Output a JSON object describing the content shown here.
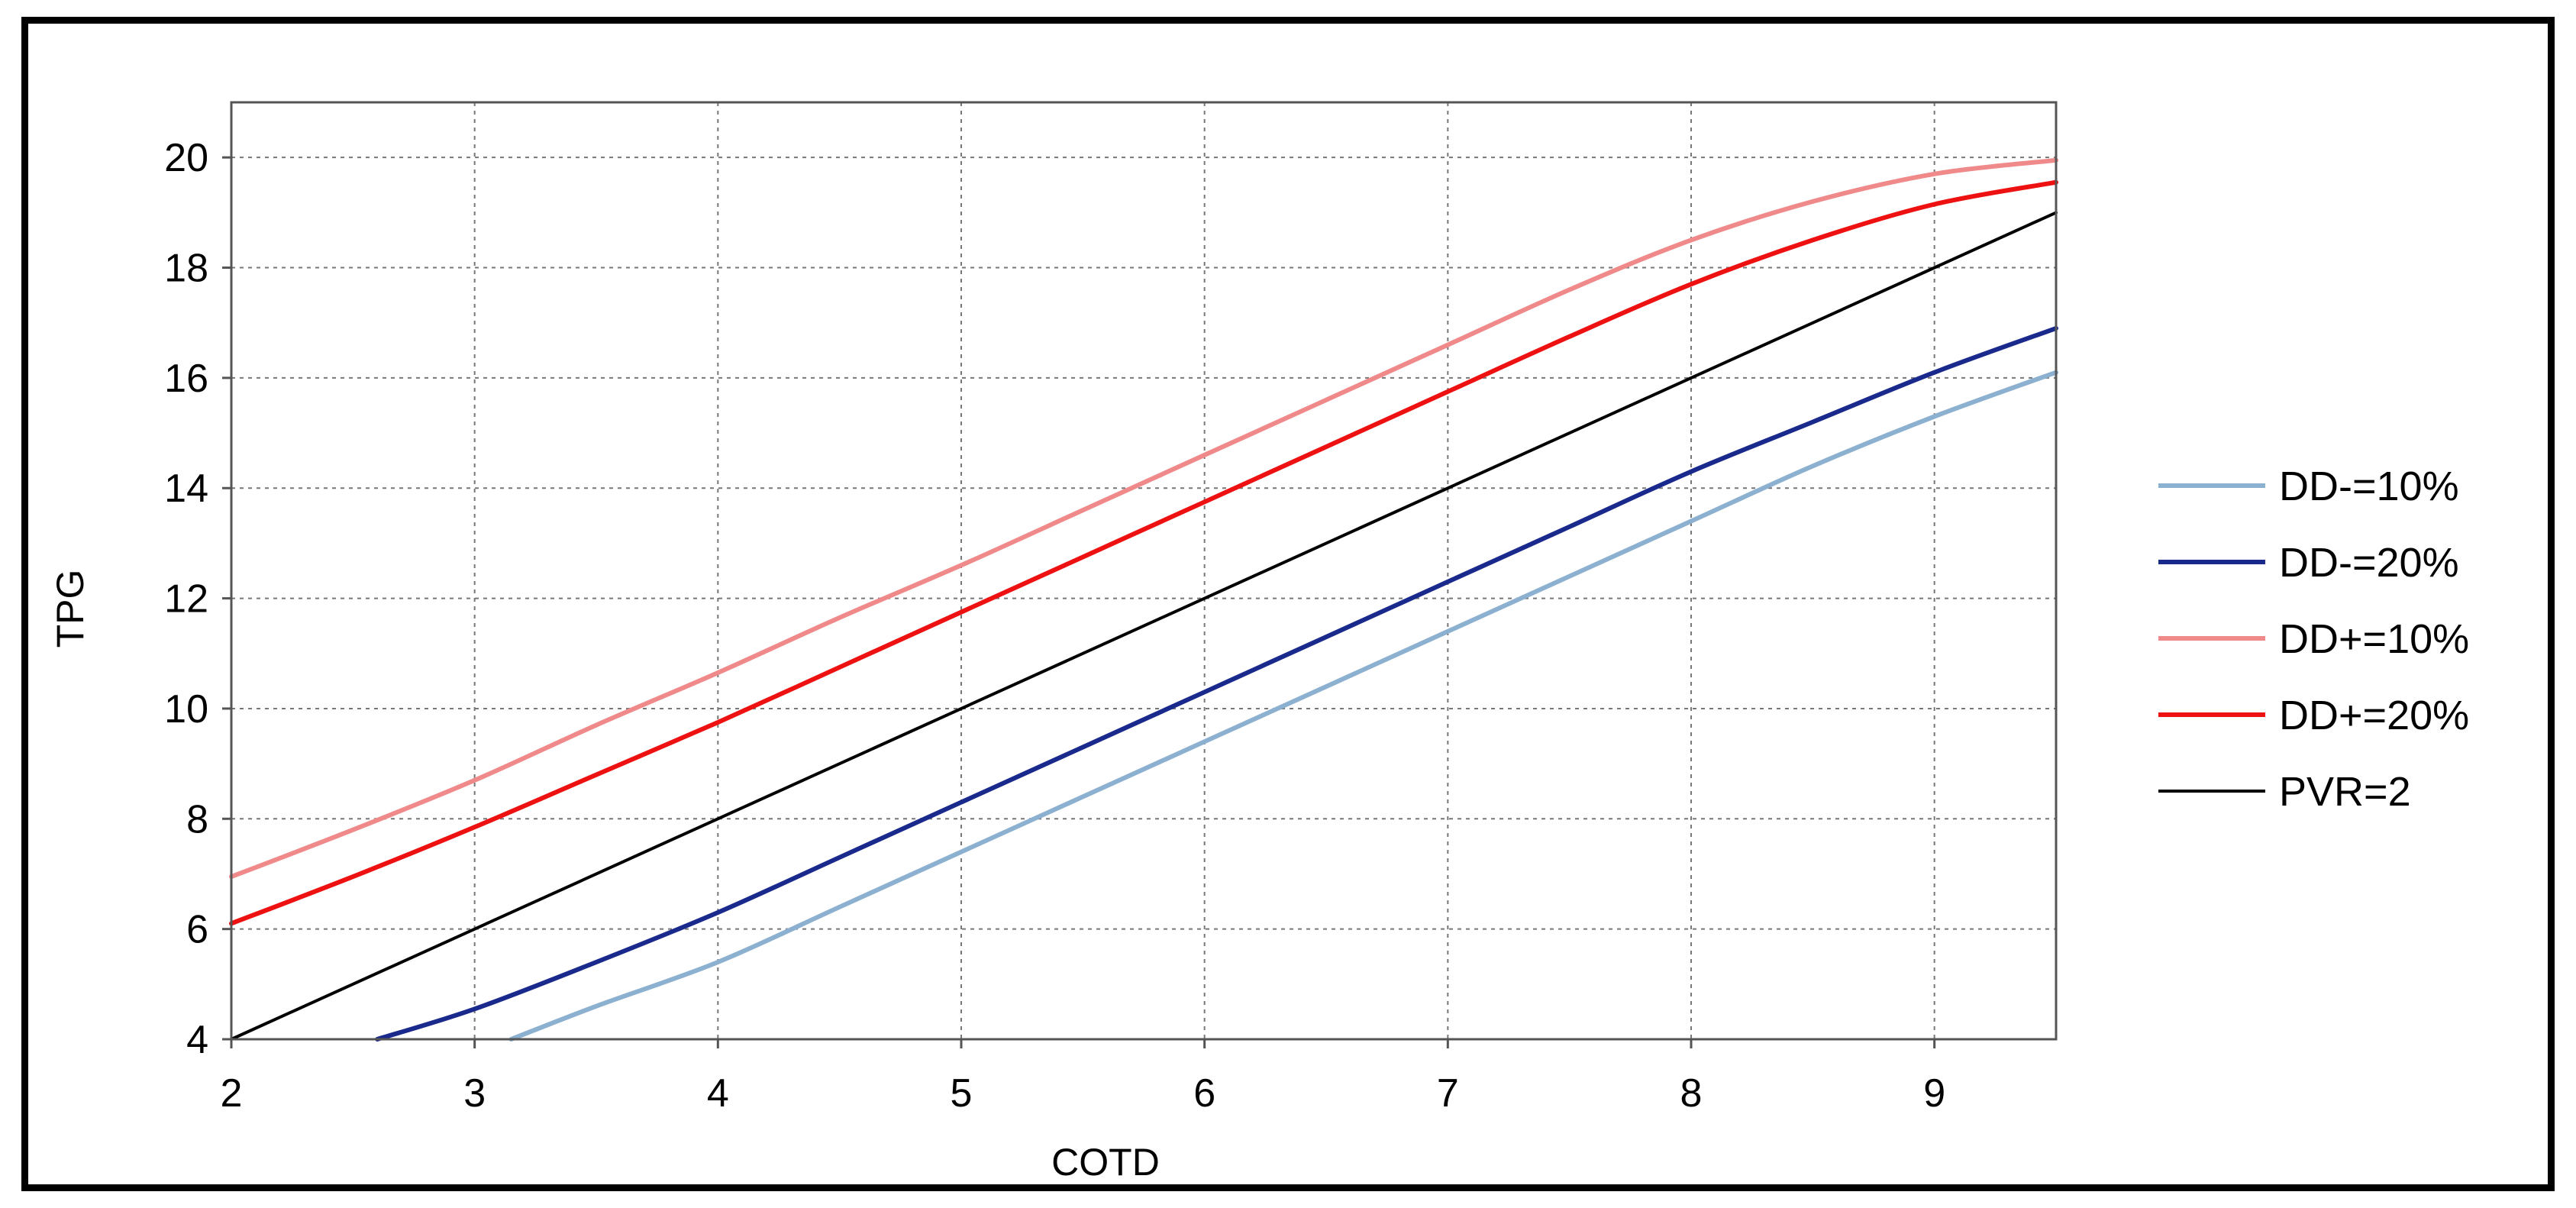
{
  "chart_data": {
    "type": "line",
    "title": "",
    "xlabel": "COTD",
    "ylabel": "TPG",
    "xlim": [
      2,
      9.5
    ],
    "ylim": [
      4,
      21
    ],
    "xticks": [
      "2",
      "3",
      "4",
      "5",
      "6",
      "7",
      "8",
      "9"
    ],
    "yticks": [
      "4",
      "6",
      "8",
      "10",
      "12",
      "14",
      "16",
      "18",
      "20"
    ],
    "grid": true,
    "legend_position": "right",
    "series": [
      {
        "name": "DD-=10%",
        "color": "#8cb0d0",
        "x": [
          3.15,
          3.5,
          4.0,
          4.5,
          5.0,
          5.5,
          6.0,
          6.5,
          7.0,
          7.5,
          8.0,
          8.5,
          9.0,
          9.5
        ],
        "y": [
          4.0,
          4.6,
          5.4,
          6.4,
          7.4,
          8.4,
          9.4,
          10.4,
          11.4,
          12.4,
          13.4,
          14.4,
          15.3,
          16.1
        ]
      },
      {
        "name": "DD-=20%",
        "color": "#1a2a8c",
        "x": [
          2.6,
          3.0,
          3.5,
          4.0,
          4.5,
          5.0,
          5.5,
          6.0,
          6.5,
          7.0,
          7.5,
          8.0,
          8.5,
          9.0,
          9.5
        ],
        "y": [
          4.0,
          4.55,
          5.4,
          6.3,
          7.3,
          8.3,
          9.3,
          10.3,
          11.3,
          12.3,
          13.3,
          14.3,
          15.2,
          16.1,
          16.9
        ]
      },
      {
        "name": "DD+=10%",
        "color": "#f08a8a",
        "x": [
          2.0,
          2.5,
          3.0,
          3.5,
          4.0,
          4.5,
          5.0,
          5.5,
          6.0,
          6.5,
          7.0,
          7.5,
          8.0,
          8.5,
          9.0,
          9.5
        ],
        "y": [
          6.95,
          7.8,
          8.7,
          9.7,
          10.65,
          11.65,
          12.6,
          13.6,
          14.6,
          15.6,
          16.6,
          17.6,
          18.5,
          19.2,
          19.7,
          19.95
        ]
      },
      {
        "name": "DD+=20%",
        "color": "#ee1111",
        "x": [
          2.0,
          2.5,
          3.0,
          3.5,
          4.0,
          4.5,
          5.0,
          5.5,
          6.0,
          6.5,
          7.0,
          7.5,
          8.0,
          8.5,
          9.0,
          9.5
        ],
        "y": [
          6.1,
          6.95,
          7.85,
          8.8,
          9.75,
          10.75,
          11.75,
          12.75,
          13.75,
          14.75,
          15.75,
          16.75,
          17.7,
          18.5,
          19.15,
          19.55
        ]
      },
      {
        "name": "PVR=2",
        "color": "#000000",
        "x": [
          2.0,
          9.5
        ],
        "y": [
          4.0,
          19.0
        ]
      }
    ]
  }
}
